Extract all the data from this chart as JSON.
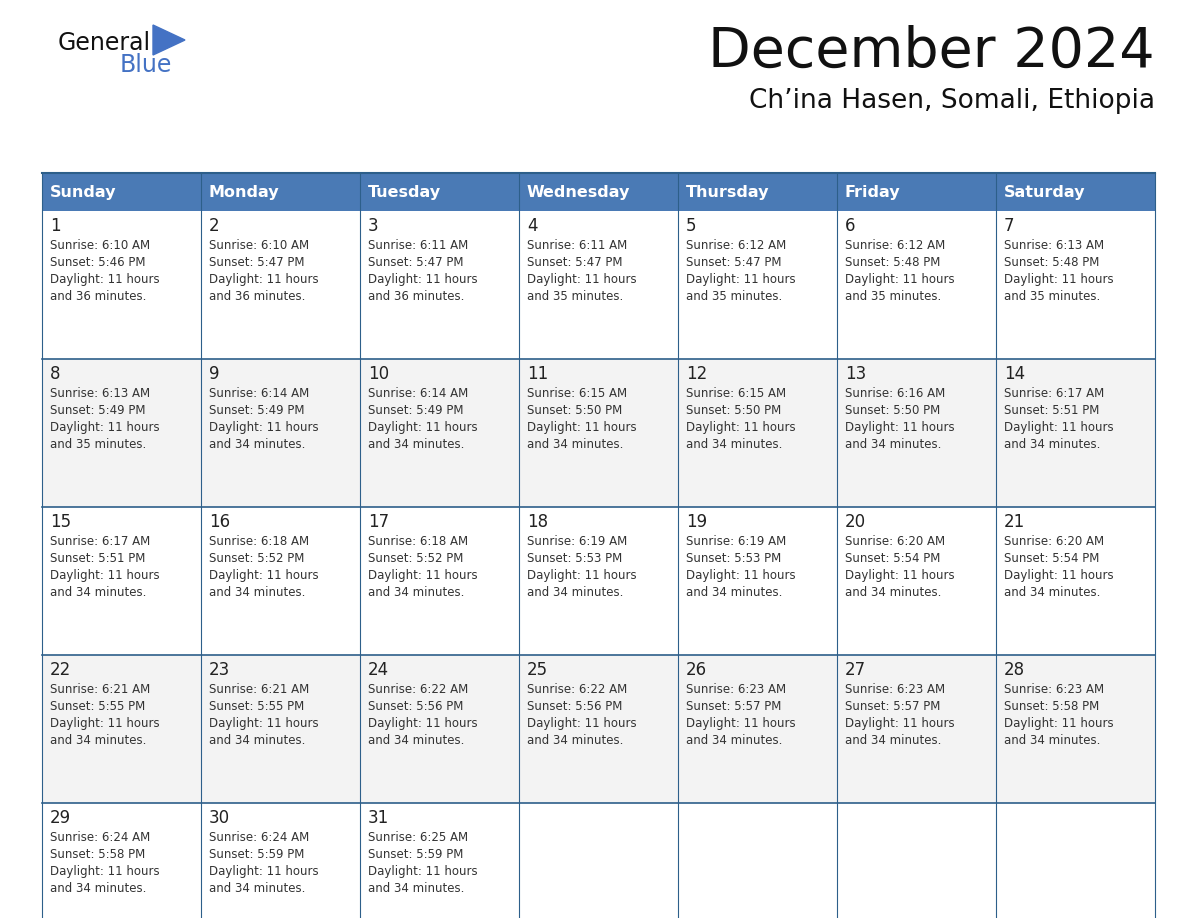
{
  "title": "December 2024",
  "subtitle": "Ch’ina Hasen, Somali, Ethiopia",
  "days_of_week": [
    "Sunday",
    "Monday",
    "Tuesday",
    "Wednesday",
    "Thursday",
    "Friday",
    "Saturday"
  ],
  "header_bg": "#4a7ab5",
  "header_text": "#FFFFFF",
  "cell_bg": "#FFFFFF",
  "border_color": "#2d5f8a",
  "text_color": "#333333",
  "day_num_color": "#222222",
  "calendar_data": [
    [
      {
        "day": 1,
        "sunrise": "6:10 AM",
        "sunset": "5:46 PM",
        "daylight": "11 hours\nand 36 minutes."
      },
      {
        "day": 2,
        "sunrise": "6:10 AM",
        "sunset": "5:47 PM",
        "daylight": "11 hours\nand 36 minutes."
      },
      {
        "day": 3,
        "sunrise": "6:11 AM",
        "sunset": "5:47 PM",
        "daylight": "11 hours\nand 36 minutes."
      },
      {
        "day": 4,
        "sunrise": "6:11 AM",
        "sunset": "5:47 PM",
        "daylight": "11 hours\nand 35 minutes."
      },
      {
        "day": 5,
        "sunrise": "6:12 AM",
        "sunset": "5:47 PM",
        "daylight": "11 hours\nand 35 minutes."
      },
      {
        "day": 6,
        "sunrise": "6:12 AM",
        "sunset": "5:48 PM",
        "daylight": "11 hours\nand 35 minutes."
      },
      {
        "day": 7,
        "sunrise": "6:13 AM",
        "sunset": "5:48 PM",
        "daylight": "11 hours\nand 35 minutes."
      }
    ],
    [
      {
        "day": 8,
        "sunrise": "6:13 AM",
        "sunset": "5:49 PM",
        "daylight": "11 hours\nand 35 minutes."
      },
      {
        "day": 9,
        "sunrise": "6:14 AM",
        "sunset": "5:49 PM",
        "daylight": "11 hours\nand 34 minutes."
      },
      {
        "day": 10,
        "sunrise": "6:14 AM",
        "sunset": "5:49 PM",
        "daylight": "11 hours\nand 34 minutes."
      },
      {
        "day": 11,
        "sunrise": "6:15 AM",
        "sunset": "5:50 PM",
        "daylight": "11 hours\nand 34 minutes."
      },
      {
        "day": 12,
        "sunrise": "6:15 AM",
        "sunset": "5:50 PM",
        "daylight": "11 hours\nand 34 minutes."
      },
      {
        "day": 13,
        "sunrise": "6:16 AM",
        "sunset": "5:50 PM",
        "daylight": "11 hours\nand 34 minutes."
      },
      {
        "day": 14,
        "sunrise": "6:17 AM",
        "sunset": "5:51 PM",
        "daylight": "11 hours\nand 34 minutes."
      }
    ],
    [
      {
        "day": 15,
        "sunrise": "6:17 AM",
        "sunset": "5:51 PM",
        "daylight": "11 hours\nand 34 minutes."
      },
      {
        "day": 16,
        "sunrise": "6:18 AM",
        "sunset": "5:52 PM",
        "daylight": "11 hours\nand 34 minutes."
      },
      {
        "day": 17,
        "sunrise": "6:18 AM",
        "sunset": "5:52 PM",
        "daylight": "11 hours\nand 34 minutes."
      },
      {
        "day": 18,
        "sunrise": "6:19 AM",
        "sunset": "5:53 PM",
        "daylight": "11 hours\nand 34 minutes."
      },
      {
        "day": 19,
        "sunrise": "6:19 AM",
        "sunset": "5:53 PM",
        "daylight": "11 hours\nand 34 minutes."
      },
      {
        "day": 20,
        "sunrise": "6:20 AM",
        "sunset": "5:54 PM",
        "daylight": "11 hours\nand 34 minutes."
      },
      {
        "day": 21,
        "sunrise": "6:20 AM",
        "sunset": "5:54 PM",
        "daylight": "11 hours\nand 34 minutes."
      }
    ],
    [
      {
        "day": 22,
        "sunrise": "6:21 AM",
        "sunset": "5:55 PM",
        "daylight": "11 hours\nand 34 minutes."
      },
      {
        "day": 23,
        "sunrise": "6:21 AM",
        "sunset": "5:55 PM",
        "daylight": "11 hours\nand 34 minutes."
      },
      {
        "day": 24,
        "sunrise": "6:22 AM",
        "sunset": "5:56 PM",
        "daylight": "11 hours\nand 34 minutes."
      },
      {
        "day": 25,
        "sunrise": "6:22 AM",
        "sunset": "5:56 PM",
        "daylight": "11 hours\nand 34 minutes."
      },
      {
        "day": 26,
        "sunrise": "6:23 AM",
        "sunset": "5:57 PM",
        "daylight": "11 hours\nand 34 minutes."
      },
      {
        "day": 27,
        "sunrise": "6:23 AM",
        "sunset": "5:57 PM",
        "daylight": "11 hours\nand 34 minutes."
      },
      {
        "day": 28,
        "sunrise": "6:23 AM",
        "sunset": "5:58 PM",
        "daylight": "11 hours\nand 34 minutes."
      }
    ],
    [
      {
        "day": 29,
        "sunrise": "6:24 AM",
        "sunset": "5:58 PM",
        "daylight": "11 hours\nand 34 minutes."
      },
      {
        "day": 30,
        "sunrise": "6:24 AM",
        "sunset": "5:59 PM",
        "daylight": "11 hours\nand 34 minutes."
      },
      {
        "day": 31,
        "sunrise": "6:25 AM",
        "sunset": "5:59 PM",
        "daylight": "11 hours\nand 34 minutes."
      },
      null,
      null,
      null,
      null
    ]
  ]
}
